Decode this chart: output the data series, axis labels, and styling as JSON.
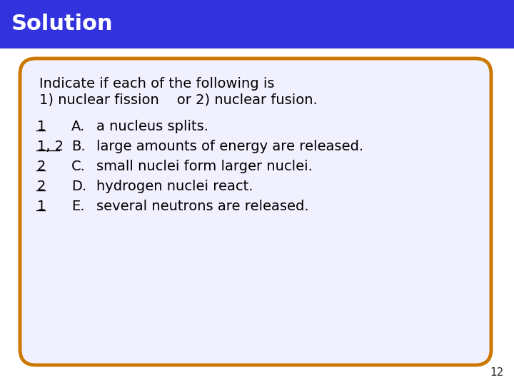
{
  "title": "Solution",
  "title_bg_color": "#3333dd",
  "title_text_color": "#ffffff",
  "title_font_size": 22,
  "card_bg_color": "#f0f0ff",
  "card_border_color": "#cc7700",
  "header_line_color": "#ffffff",
  "slide_bg_color": "#ffffff",
  "page_number": "12",
  "intro_line1": "Indicate if each of the following is",
  "intro_line2": "1) nuclear fission    or 2) nuclear fusion.",
  "answer_displays": [
    "1",
    "1, 2",
    "2",
    "2",
    "1"
  ],
  "letters": [
    "A.",
    "B.",
    "C.",
    "D.",
    "E."
  ],
  "texts": [
    "a nucleus splits.",
    "large amounts of energy are released.",
    "small nuclei form larger nuclei.",
    "hydrogen nuclei react.",
    "several neutrons are released."
  ],
  "body_font_size": 14,
  "item_font_size": 14
}
